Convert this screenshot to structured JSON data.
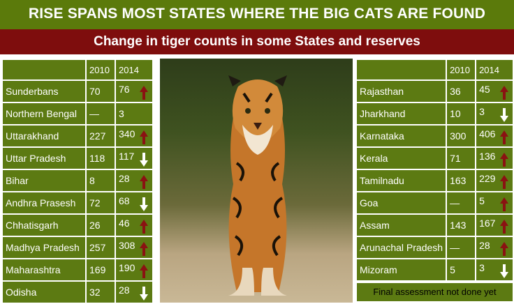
{
  "header": {
    "title": "RISE SPANS MOST STATES  WHERE THE BIG CATS ARE FOUND",
    "subtitle": "Change in tiger counts in some States and reserves"
  },
  "columns": {
    "y1": "2010",
    "y2": "2014"
  },
  "left_rows": [
    {
      "name": "Sunderbans",
      "v2010": "70",
      "v2014": "76",
      "trend": "up"
    },
    {
      "name": "Northern Bengal",
      "v2010": "—",
      "v2014": "3",
      "trend": ""
    },
    {
      "name": "Uttarakhand",
      "v2010": "227",
      "v2014": "340",
      "trend": "up"
    },
    {
      "name": "Uttar Pradesh",
      "v2010": "118",
      "v2014": "117",
      "trend": "down"
    },
    {
      "name": "Bihar",
      "v2010": "8",
      "v2014": "28",
      "trend": "up"
    },
    {
      "name": "Andhra Prasesh",
      "v2010": "72",
      "v2014": "68",
      "trend": "down"
    },
    {
      "name": "Chhatisgarh",
      "v2010": "26",
      "v2014": "46",
      "trend": "up"
    },
    {
      "name": "Madhya Pradesh",
      "v2010": "257",
      "v2014": "308",
      "trend": "up"
    },
    {
      "name": "Maharashtra",
      "v2010": "169",
      "v2014": "190",
      "trend": "up"
    },
    {
      "name": "Odisha",
      "v2010": "32",
      "v2014": "28",
      "trend": "down"
    }
  ],
  "right_rows": [
    {
      "name": "Rajasthan",
      "v2010": "36",
      "v2014": "45",
      "trend": "up"
    },
    {
      "name": "Jharkhand",
      "v2010": "10",
      "v2014": "3",
      "trend": "down"
    },
    {
      "name": "Karnataka",
      "v2010": "300",
      "v2014": "406",
      "trend": "up"
    },
    {
      "name": "Kerala",
      "v2010": "71",
      "v2014": "136",
      "trend": "up"
    },
    {
      "name": "Tamilnadu",
      "v2010": "163",
      "v2014": "229",
      "trend": "up"
    },
    {
      "name": "Goa",
      "v2010": "—",
      "v2014": "5",
      "trend": "up"
    },
    {
      "name": "Assam",
      "v2010": "143",
      "v2014": "167",
      "trend": "up"
    },
    {
      "name": "Arunachal Pradesh",
      "v2010": "—",
      "v2014": "28",
      "trend": "up"
    },
    {
      "name": "Mizoram",
      "v2010": "5",
      "v2014": "3",
      "trend": "down"
    }
  ],
  "note": "Final assessment not done yet",
  "colors": {
    "banner": "#5b7a0b",
    "subbanner": "#7e0d0d",
    "cell": "#5c7a12",
    "up_arrow": "#8a1212",
    "down_arrow": "#ffffff"
  }
}
